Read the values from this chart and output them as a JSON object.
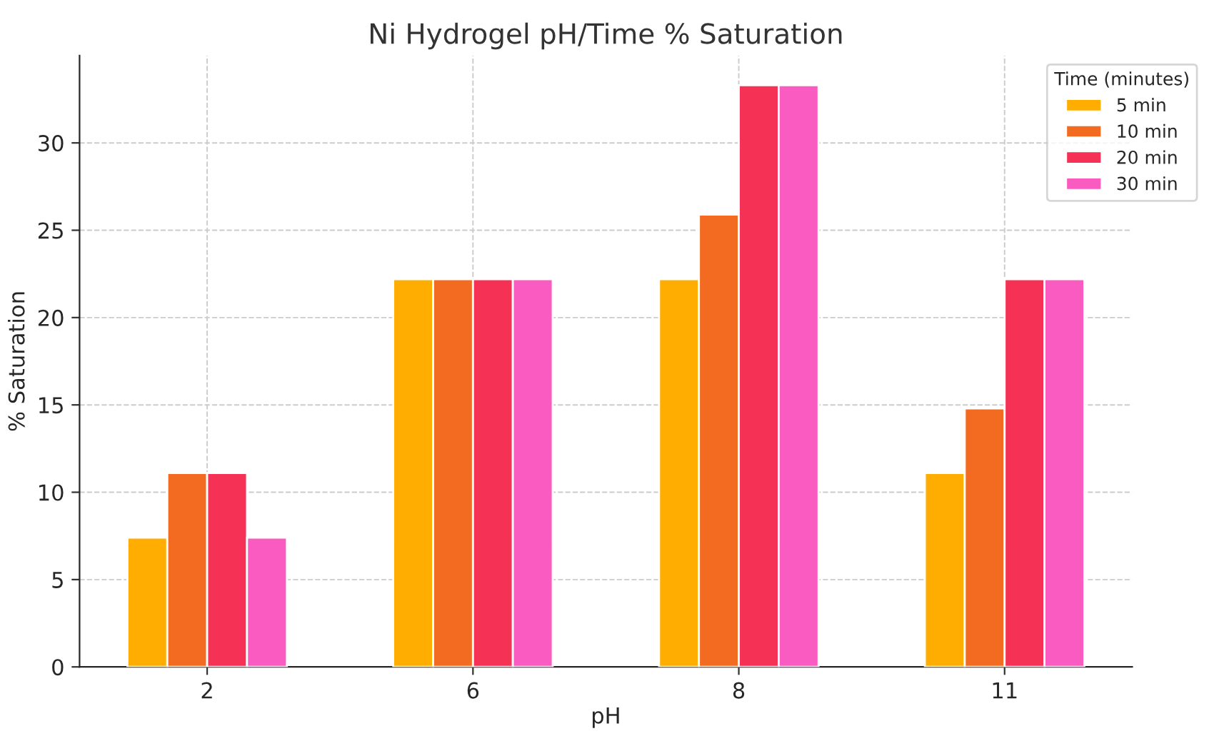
{
  "chart_data": {
    "type": "bar",
    "title": "Ni Hydrogel pH/Time % Saturation",
    "xlabel": "pH",
    "ylabel": "% Saturation",
    "legend_title": "Time (minutes)",
    "categories": [
      "2",
      "6",
      "8",
      "11"
    ],
    "series": [
      {
        "name": "5 min",
        "color": "#ffad00",
        "values": [
          7.4,
          22.2,
          22.2,
          11.1
        ]
      },
      {
        "name": "10 min",
        "color": "#f26b21",
        "values": [
          11.1,
          22.2,
          25.9,
          14.8
        ]
      },
      {
        "name": "20 min",
        "color": "#f53155",
        "values": [
          11.1,
          22.2,
          33.3,
          22.2
        ]
      },
      {
        "name": "30 min",
        "color": "#f95bc0",
        "values": [
          7.4,
          22.2,
          33.3,
          22.2
        ]
      }
    ],
    "ylim": [
      0,
      35
    ],
    "yticks": [
      0,
      5,
      10,
      15,
      20,
      25,
      30
    ],
    "grid": true,
    "legend": "top right"
  }
}
